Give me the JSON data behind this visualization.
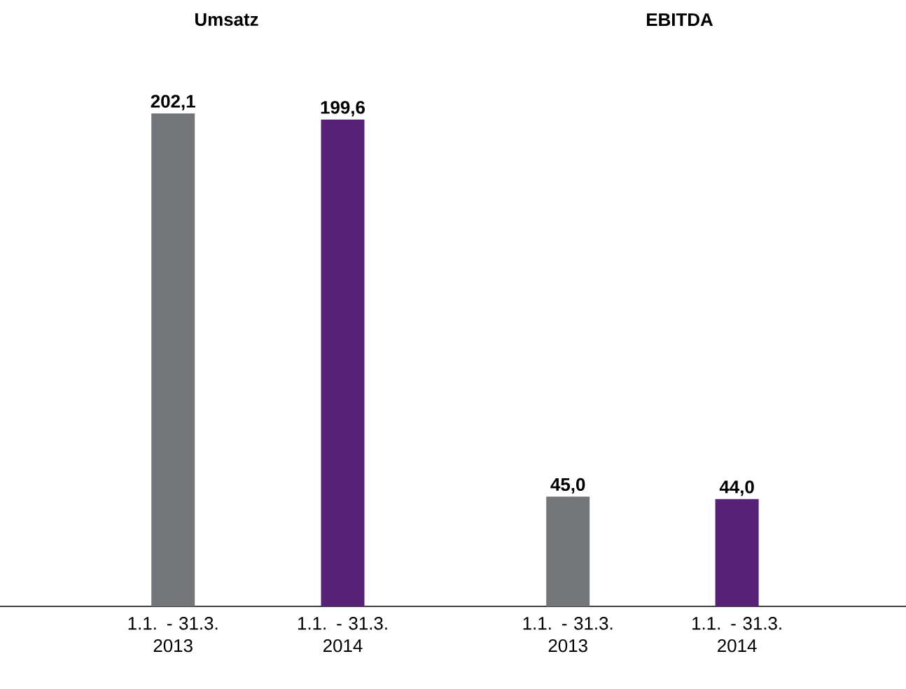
{
  "chart_data": [
    {
      "type": "bar",
      "title": "Umsatz",
      "categories": [
        "1.1. - 31.3. 2013",
        "1.1. - 31.3. 2014"
      ],
      "values": [
        202.1,
        199.6
      ],
      "value_labels": [
        "202,1",
        "199,6"
      ],
      "colors": [
        "#737679",
        "#562177"
      ]
    },
    {
      "type": "bar",
      "title": "EBITDA",
      "categories": [
        "1.1. - 31.3. 2013",
        "1.1. - 31.3. 2014"
      ],
      "values": [
        45.0,
        44.0
      ],
      "value_labels": [
        "45,0",
        "44,0"
      ],
      "colors": [
        "#737679",
        "#562177"
      ]
    }
  ]
}
